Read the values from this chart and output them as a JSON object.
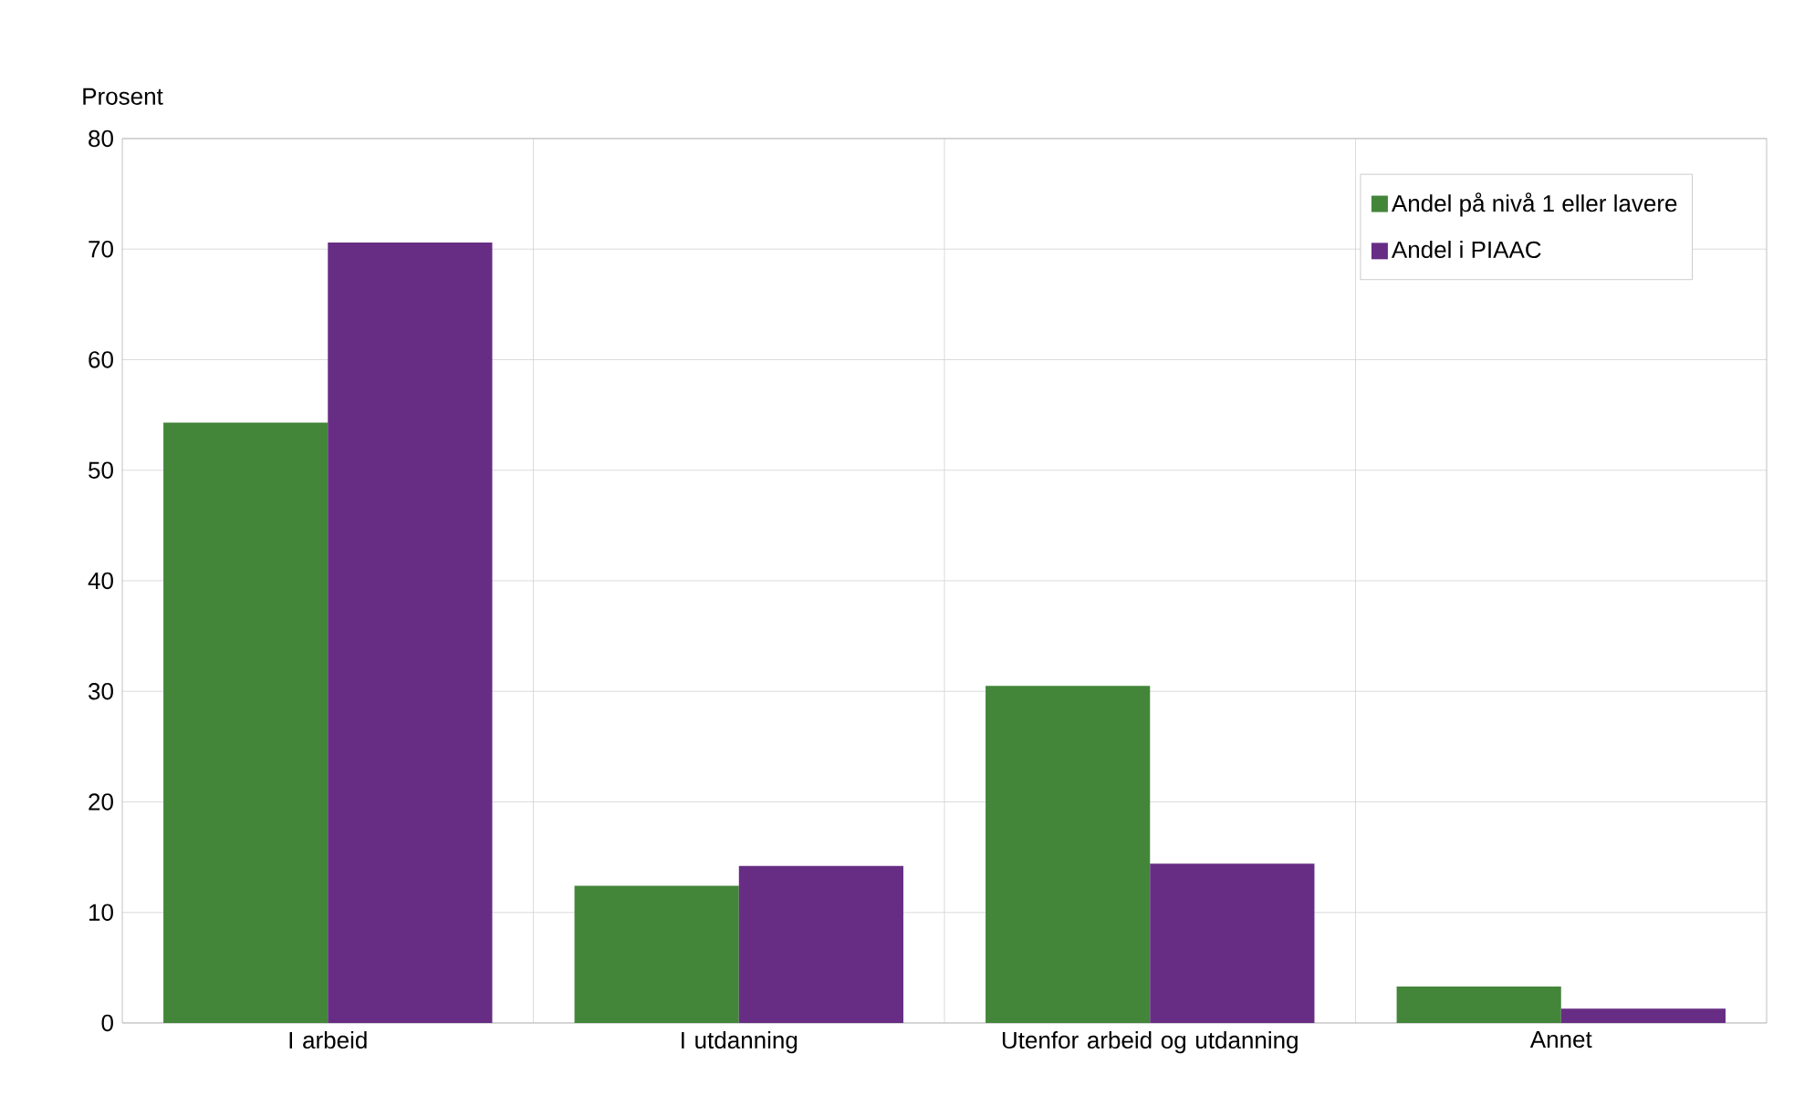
{
  "chart_data": {
    "type": "bar",
    "ylabel": "Prosent",
    "categories": [
      "I arbeid",
      "I utdanning",
      "Utenfor arbeid og utdanning",
      "Annet"
    ],
    "series": [
      {
        "name": "Andel på nivå 1 eller lavere",
        "color": "#43863a",
        "values": [
          54.3,
          12.4,
          30.5,
          3.3
        ]
      },
      {
        "name": "Andel i PIAAC",
        "color": "#672d84",
        "values": [
          70.6,
          14.2,
          14.4,
          1.3
        ]
      }
    ],
    "ylim": [
      0,
      80
    ],
    "yticks": [
      0,
      10,
      20,
      30,
      40,
      50,
      60,
      70,
      80
    ],
    "grid": true,
    "legend": "top right"
  }
}
